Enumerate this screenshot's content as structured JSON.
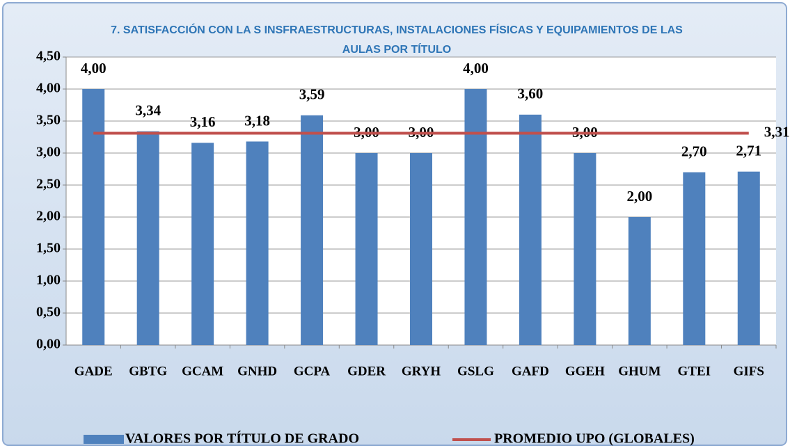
{
  "chart_data": {
    "type": "bar",
    "title": "7. SATISFACCIÓN CON LA S INSFRAESTRUCTURAS, INSTALACIONES FÍSICAS Y EQUIPAMIENTOS DE LAS AULAS POR TÍTULO",
    "categories": [
      "GADE",
      "GBTG",
      "GCAM",
      "GNHD",
      "GCPA",
      "GDER",
      "GRYH",
      "GSLG",
      "GAFD",
      "GGEH",
      "GHUM",
      "GTEI",
      "GIFS"
    ],
    "series": [
      {
        "name": "VALORES POR TÍTULO DE GRADO",
        "type": "bar",
        "color": "#4f81bd",
        "values": [
          4.0,
          3.34,
          3.16,
          3.18,
          3.59,
          3.0,
          3.0,
          4.0,
          3.6,
          3.0,
          2.0,
          2.7,
          2.71
        ],
        "value_labels": [
          "4,00",
          "3,34",
          "3,16",
          "3,18",
          "3,59",
          "3,00",
          "3,00",
          "4,00",
          "3,60",
          "3,00",
          "2,00",
          "2,70",
          "2,71"
        ]
      },
      {
        "name": "PROMEDIO UPO (GLOBALES)",
        "type": "line",
        "color": "#c0504d",
        "values": [
          3.31,
          3.31,
          3.31,
          3.31,
          3.31,
          3.31,
          3.31,
          3.31,
          3.31,
          3.31,
          3.31,
          3.31,
          3.31
        ],
        "value_label": "3,31"
      }
    ],
    "ylim": [
      0,
      4.5
    ],
    "yticks": [
      {
        "value": 0,
        "label": "0,00"
      },
      {
        "value": 0.5,
        "label": "0,50"
      },
      {
        "value": 1,
        "label": "1,00"
      },
      {
        "value": 1.5,
        "label": "1,50"
      },
      {
        "value": 2,
        "label": "2,00"
      },
      {
        "value": 2.5,
        "label": "2,50"
      },
      {
        "value": 3,
        "label": "3,00"
      },
      {
        "value": 3.5,
        "label": "3,50"
      },
      {
        "value": 4,
        "label": "4,00"
      },
      {
        "value": 4.5,
        "label": "4,50"
      }
    ],
    "grid": true
  }
}
